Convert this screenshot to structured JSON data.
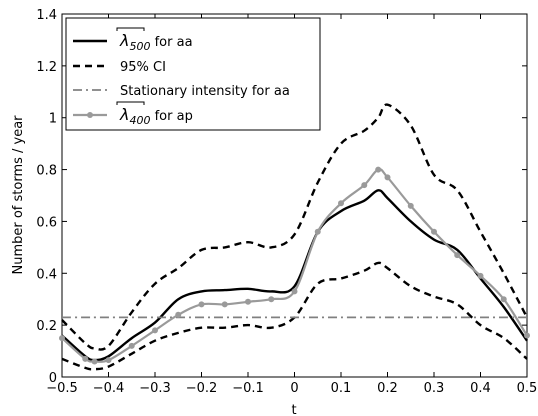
{
  "chart_data": {
    "type": "line",
    "xlabel": "t",
    "ylabel": "Number of storms / year",
    "xlim": [
      -0.5,
      0.5
    ],
    "ylim": [
      0,
      1.4
    ],
    "xticks": [
      "−0.5",
      "−0.4",
      "−0.3",
      "−0.2",
      "−0.1",
      "0",
      "0.1",
      "0.2",
      "0.3",
      "0.4",
      "0.5"
    ],
    "yticks": [
      "0",
      "0.2",
      "0.4",
      "0.6",
      "0.8",
      "1",
      "1.2",
      "1.4"
    ],
    "grid": false,
    "legend_position": "top-left",
    "x": [
      -0.5,
      -0.45,
      -0.43,
      -0.4,
      -0.35,
      -0.3,
      -0.25,
      -0.2,
      -0.15,
      -0.1,
      -0.05,
      0,
      0.05,
      0.1,
      0.15,
      0.18,
      0.2,
      0.25,
      0.3,
      0.35,
      0.4,
      0.45,
      0.5
    ],
    "series": [
      {
        "name": "λ̂500 for aa",
        "legend_base": "λ",
        "legend_sub": "500",
        "legend_suffix": "for aa",
        "style": "solid",
        "color": "#000000",
        "values": [
          0.16,
          0.08,
          0.065,
          0.08,
          0.15,
          0.21,
          0.3,
          0.33,
          0.335,
          0.34,
          0.33,
          0.35,
          0.56,
          0.64,
          0.68,
          0.72,
          0.69,
          0.6,
          0.53,
          0.49,
          0.38,
          0.27,
          0.14
        ]
      },
      {
        "name": "95% CI upper",
        "style": "dashed",
        "color": "#000000",
        "values": [
          0.22,
          0.13,
          0.11,
          0.12,
          0.25,
          0.36,
          0.42,
          0.49,
          0.5,
          0.52,
          0.5,
          0.55,
          0.75,
          0.9,
          0.95,
          1.0,
          1.05,
          0.97,
          0.78,
          0.72,
          0.56,
          0.4,
          0.23
        ]
      },
      {
        "name": "95% CI lower",
        "style": "dashed",
        "color": "#000000",
        "values": [
          0.07,
          0.035,
          0.03,
          0.04,
          0.09,
          0.14,
          0.17,
          0.19,
          0.19,
          0.2,
          0.19,
          0.23,
          0.36,
          0.38,
          0.41,
          0.44,
          0.42,
          0.35,
          0.31,
          0.28,
          0.2,
          0.15,
          0.07
        ]
      },
      {
        "name": "Stationary intensity for aa",
        "style": "dashdot",
        "color": "#808080",
        "values": [
          0.23,
          0.23,
          0.23,
          0.23,
          0.23,
          0.23,
          0.23,
          0.23,
          0.23,
          0.23,
          0.23,
          0.23,
          0.23,
          0.23,
          0.23,
          0.23,
          0.23,
          0.23,
          0.23,
          0.23,
          0.23,
          0.23,
          0.23
        ]
      },
      {
        "name": "λ̂400 for ap",
        "legend_base": "λ",
        "legend_sub": "400",
        "legend_suffix": "for ap",
        "style": "solid-marker",
        "color": "#9a9a9a",
        "values": [
          0.15,
          0.07,
          0.06,
          0.065,
          0.12,
          0.18,
          0.24,
          0.28,
          0.28,
          0.29,
          0.3,
          0.33,
          0.56,
          0.67,
          0.74,
          0.8,
          0.77,
          0.66,
          0.56,
          0.47,
          0.39,
          0.3,
          0.16
        ]
      }
    ],
    "legend": [
      {
        "type": "hat",
        "base": "λ",
        "sub": "500",
        "suffix": "for aa",
        "style": "solid",
        "color": "#000000"
      },
      {
        "type": "text",
        "label": "95% CI",
        "style": "dashed",
        "color": "#000000"
      },
      {
        "type": "text",
        "label": "Stationary intensity for aa",
        "style": "dashdot",
        "color": "#808080"
      },
      {
        "type": "hat",
        "base": "λ",
        "sub": "400",
        "suffix": "for ap",
        "style": "solid-marker",
        "color": "#9a9a9a"
      }
    ]
  }
}
